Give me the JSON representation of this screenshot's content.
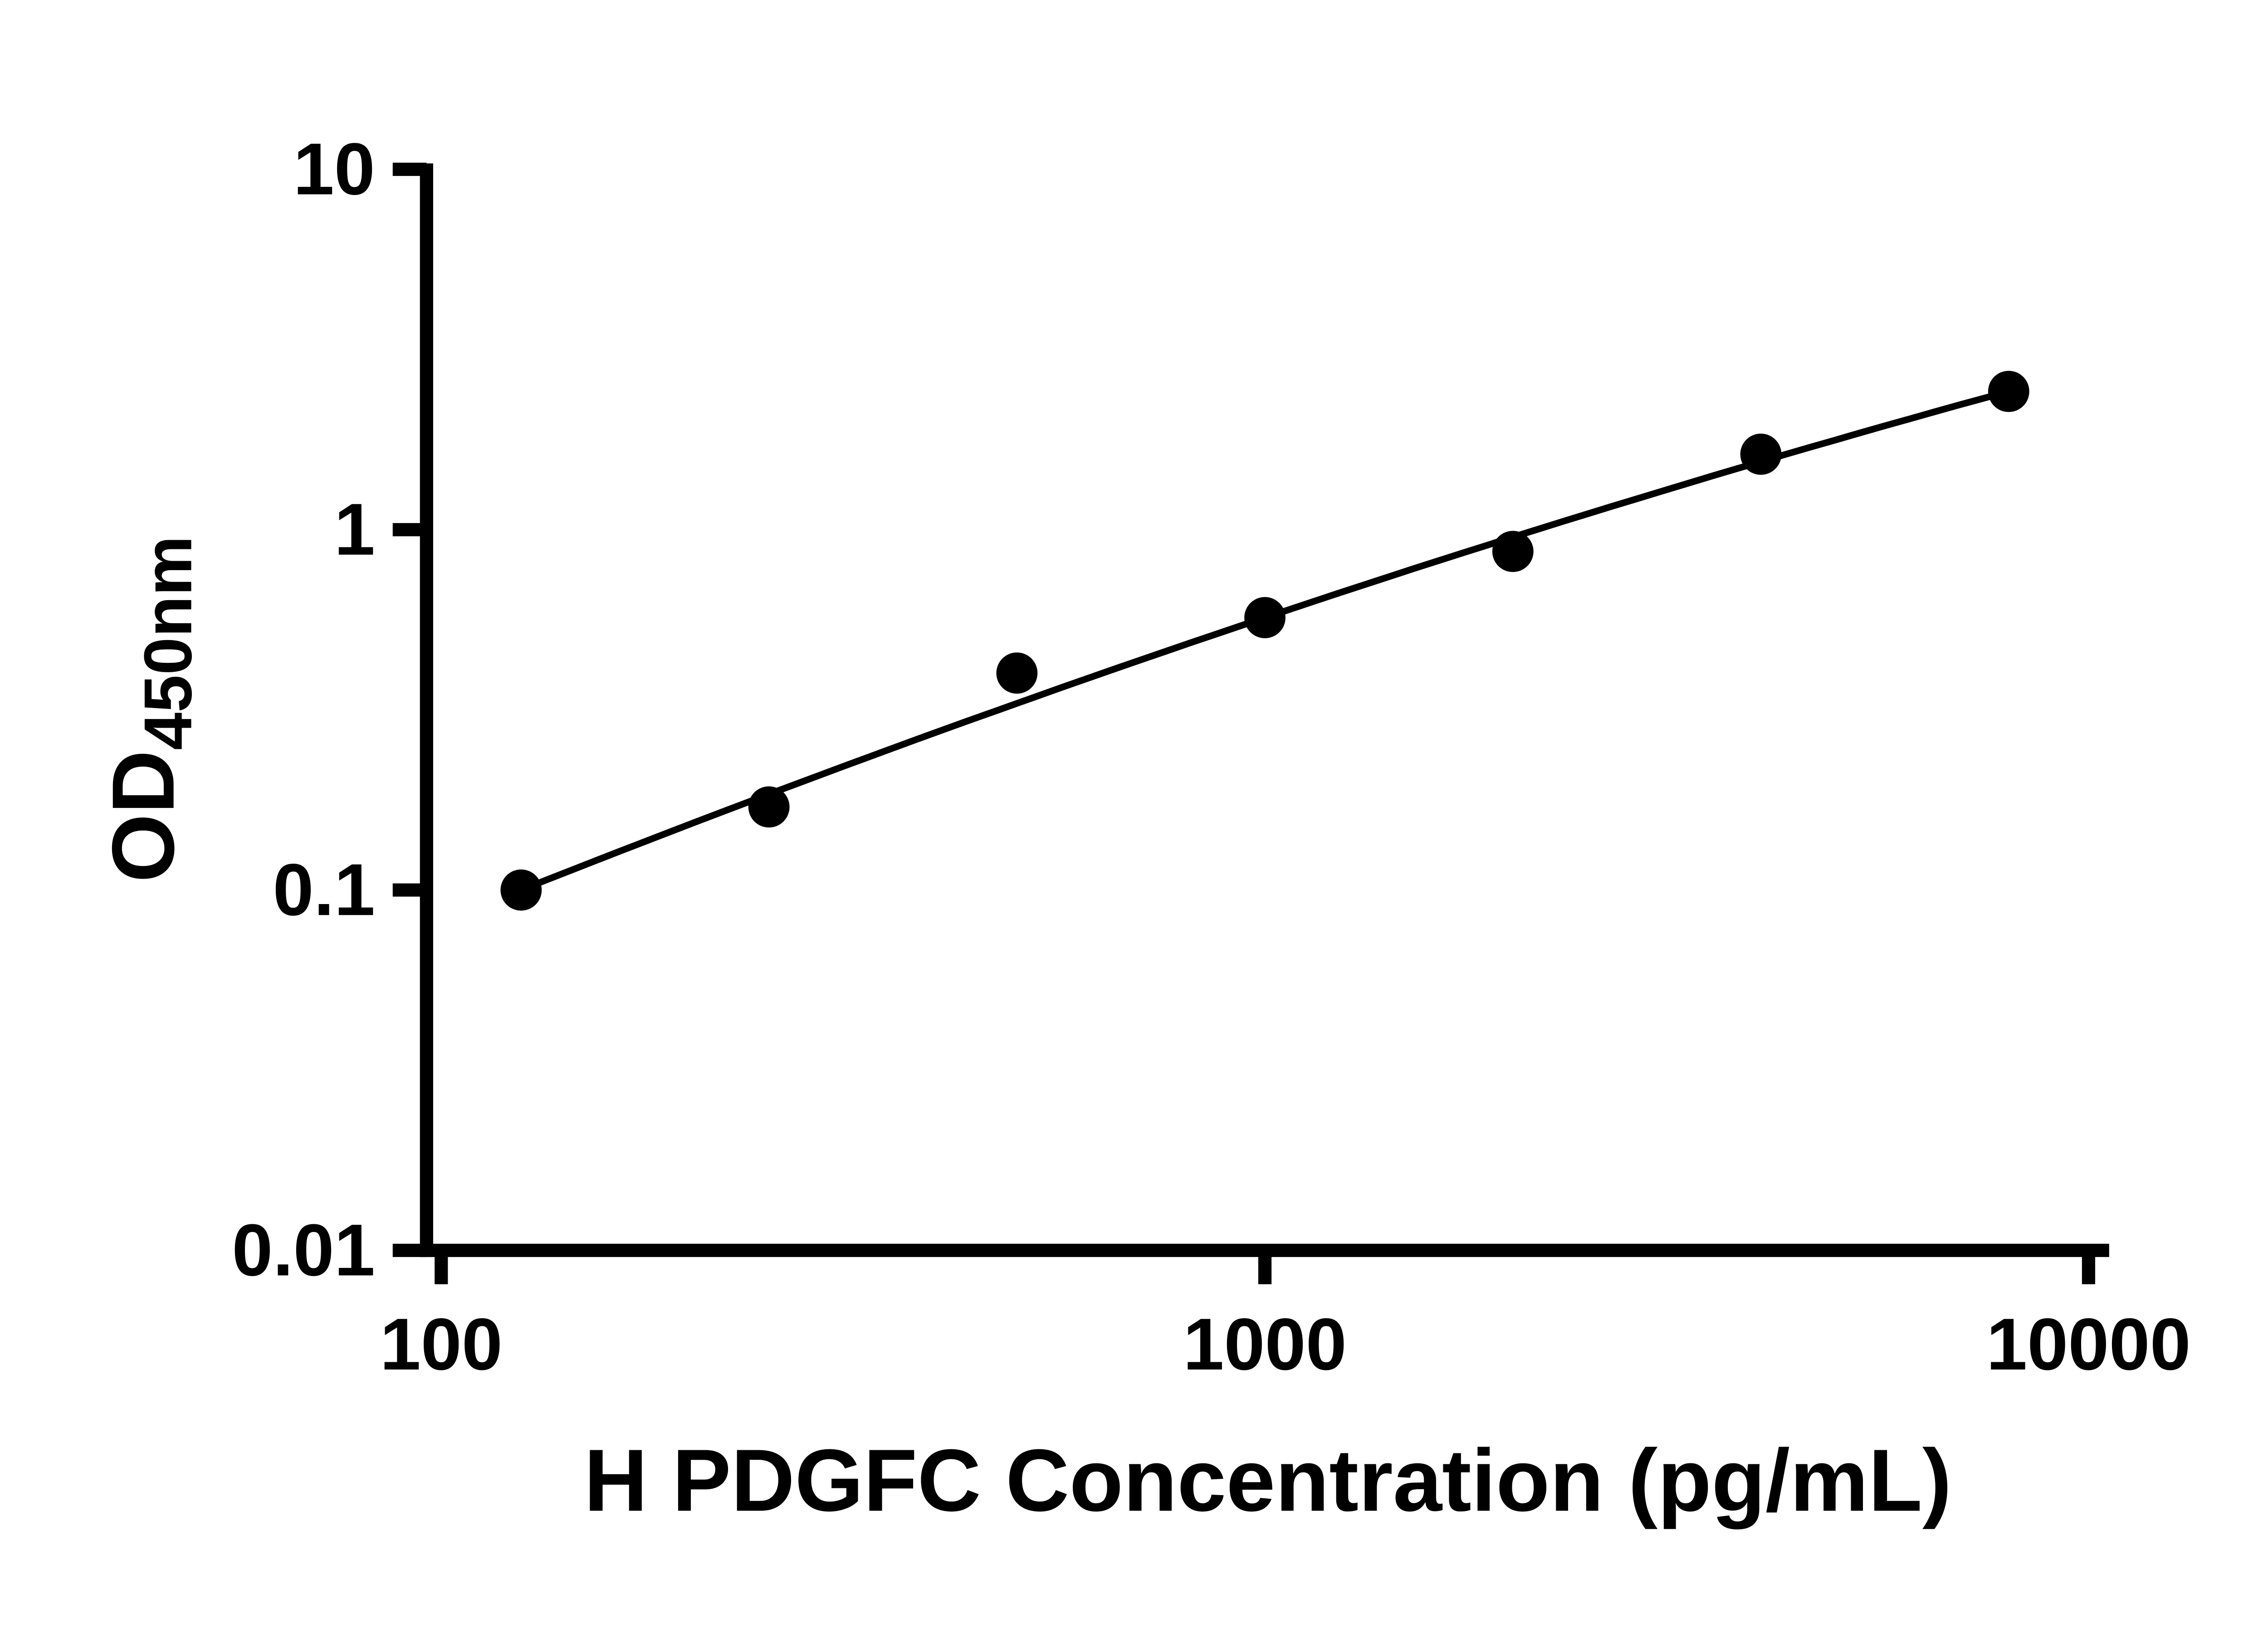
{
  "chart_data": {
    "type": "scatter",
    "title": "",
    "xlabel": "H PDGFC Concentration (pg/mL)",
    "ylabel_main": "OD",
    "ylabel_sub": "450nm",
    "x_scale": "log",
    "y_scale": "log",
    "xlim": [
      100,
      10000
    ],
    "ylim": [
      0.01,
      10
    ],
    "grid": false,
    "legend": "none",
    "x_ticks": [
      {
        "value": 100,
        "label": "100"
      },
      {
        "value": 1000,
        "label": "1000"
      },
      {
        "value": 10000,
        "label": "10000"
      }
    ],
    "y_ticks": [
      {
        "value": 10,
        "label": "10"
      },
      {
        "value": 1,
        "label": "1"
      },
      {
        "value": 0.1,
        "label": "0.1"
      },
      {
        "value": 0.01,
        "label": "0.01"
      }
    ],
    "points": [
      {
        "x": 125,
        "y": 0.1
      },
      {
        "x": 250,
        "y": 0.17
      },
      {
        "x": 500,
        "y": 0.4
      },
      {
        "x": 1000,
        "y": 0.57
      },
      {
        "x": 2000,
        "y": 0.87
      },
      {
        "x": 4000,
        "y": 1.62
      },
      {
        "x": 8000,
        "y": 2.42
      }
    ],
    "trend": {
      "type": "quadratic-loglog",
      "a": -0.2441,
      "b": 0.7662,
      "c": -0.0785,
      "u0": 3.0,
      "u_min": 2.0969,
      "u_max": 3.9031
    },
    "marker_color": "#000000",
    "line_color": "#000000",
    "axis_color": "#000000"
  }
}
